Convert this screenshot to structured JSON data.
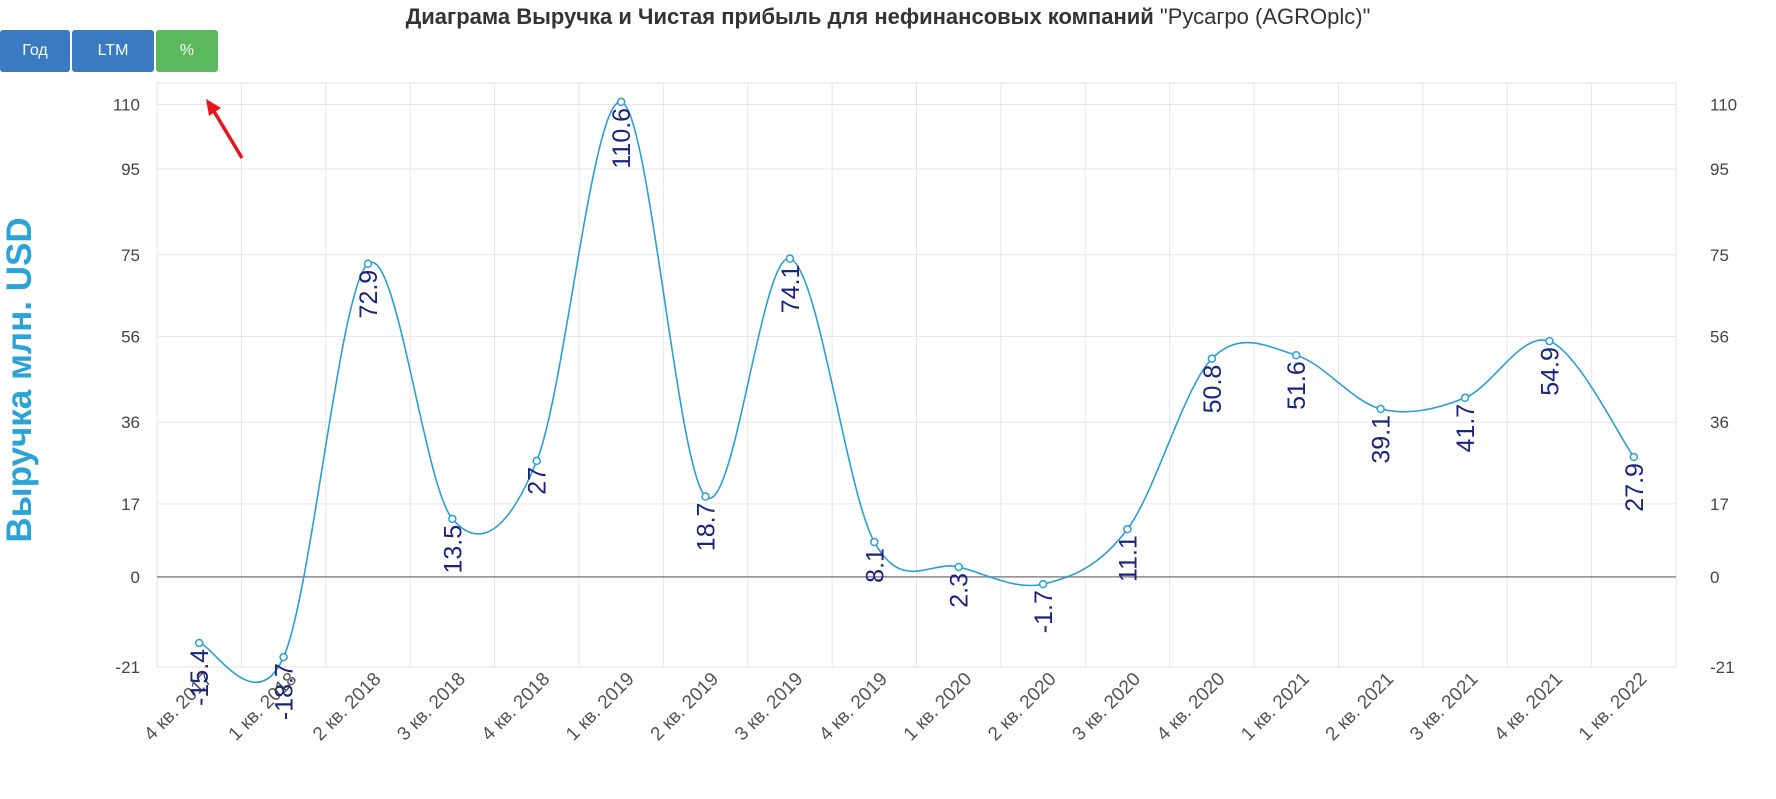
{
  "header": {
    "title_bold": "Диаграма Выручка и Чистая прибыль для нефинансовых компаний",
    "title_rest": "\"Русагро (AGROplc)\""
  },
  "toolbar": {
    "year_label": "Год",
    "ltm_label": "LTM",
    "pct_label": "%"
  },
  "colors": {
    "line": "#2a9fd6",
    "active_button": "#5cb85c",
    "button": "#3a7ac0",
    "data_label": "#1a237e",
    "arrow": "#e8141b"
  },
  "chart_data": {
    "type": "line",
    "title": "",
    "ylabel": "Выручка млн. USD",
    "xlabel": "",
    "categories": [
      "4 кв. 2017",
      "1 кв. 2018",
      "2 кв. 2018",
      "3 кв. 2018",
      "4 кв. 2018",
      "1 кв. 2019",
      "2 кв. 2019",
      "3 кв. 2019",
      "4 кв. 2019",
      "1 кв. 2020",
      "2 кв. 2020",
      "3 кв. 2020",
      "4 кв. 2020",
      "1 кв. 2021",
      "2 кв. 2021",
      "3 кв. 2021",
      "4 кв. 2021",
      "1 кв. 2022"
    ],
    "x_tick_labels": [
      "4 кв. 2017",
      "1 кв. 2018",
      "2 кв. 2018",
      "3 кв. 2018",
      "4 кв. 2018",
      "1 кв. 2019",
      "2 кв. 2019",
      "3 кв. 2019",
      "4 кв. 2019",
      "1 кв. 2020",
      "2 кв. 2020",
      "3 кв. 2020",
      "4 кв. 2020",
      "1 кв. 2021",
      "2 кв. 2021",
      "3 кв. 2021",
      "4 кв. 2021",
      "1 кв. 2022"
    ],
    "values": [
      -15.4,
      -18.7,
      72.9,
      13.5,
      27,
      110.6,
      18.7,
      74.1,
      8.1,
      2.3,
      -1.7,
      11.1,
      50.8,
      51.6,
      39.1,
      41.7,
      54.9,
      27.9
    ],
    "value_labels": [
      "-15.4",
      "-18.7",
      "72.9",
      "13.5",
      "27",
      "110.6",
      "18.7",
      "74.1",
      "8.1",
      "2.3",
      "-1.7",
      "11.1",
      "50.8",
      "51.6",
      "39.1",
      "41.7",
      "54.9",
      "27.9"
    ],
    "y_ticks": [
      -21,
      0,
      17,
      36,
      56,
      75,
      95,
      110
    ],
    "y_tick_labels": [
      "-21",
      "0",
      "17",
      "36",
      "56",
      "75",
      "95",
      "110"
    ],
    "ylim": [
      -21,
      115
    ],
    "grid": true,
    "right_axis": true
  }
}
